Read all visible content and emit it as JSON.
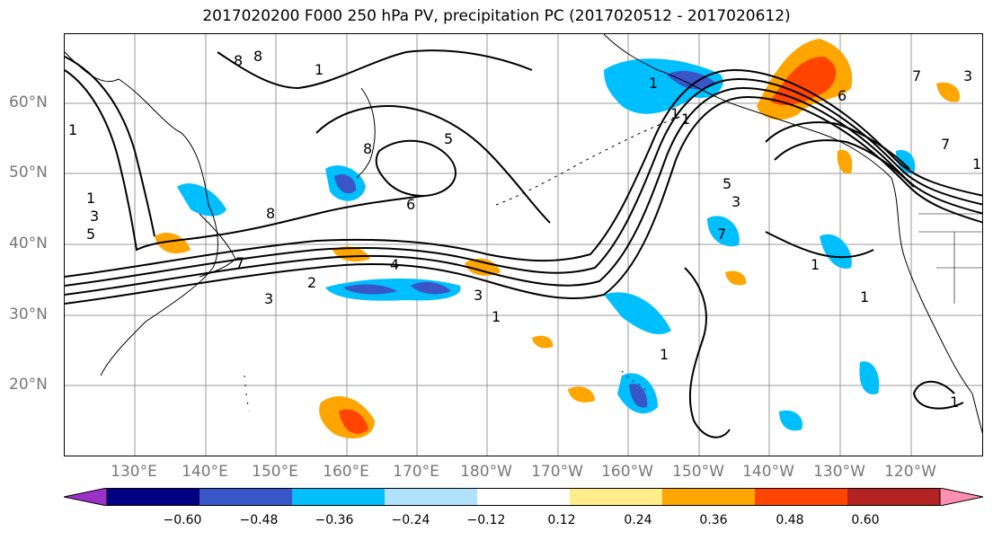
{
  "title": "2017020200 F000 250 hPa PV, precipitation PC (2017020512 - 2017020612)",
  "lat_labels": [
    "60°N",
    "50°N",
    "40°N",
    "30°N",
    "20°N"
  ],
  "lon_labels": [
    "130°E",
    "140°E",
    "150°E",
    "160°E",
    "170°E",
    "180°W",
    "170°W",
    "160°W",
    "150°W",
    "140°W",
    "130°W",
    "120°W"
  ],
  "contour_labels": [
    "8",
    "8",
    "1",
    "1",
    "1",
    "3",
    "5",
    "7",
    "2",
    "4",
    "3",
    "1",
    "8",
    "6",
    "8",
    "5",
    "1",
    "1",
    "1",
    "5",
    "3",
    "7",
    "6",
    "1",
    "7",
    "1",
    "3",
    "1",
    "7",
    "1",
    "3",
    "1"
  ],
  "colorbar": {
    "colors": [
      "#9c31c8",
      "#000080",
      "#3956c8",
      "#00bfff",
      "#b0e2ff",
      "#ffffff",
      "#ffec8b",
      "#ffa500",
      "#ff4500",
      "#b22222",
      "#ff8fb0"
    ],
    "tick_labels": [
      "−0.60",
      "−0.48",
      "−0.36",
      "−0.24",
      "−0.12",
      "0.12",
      "0.24",
      "0.36",
      "0.48",
      "0.60"
    ]
  }
}
